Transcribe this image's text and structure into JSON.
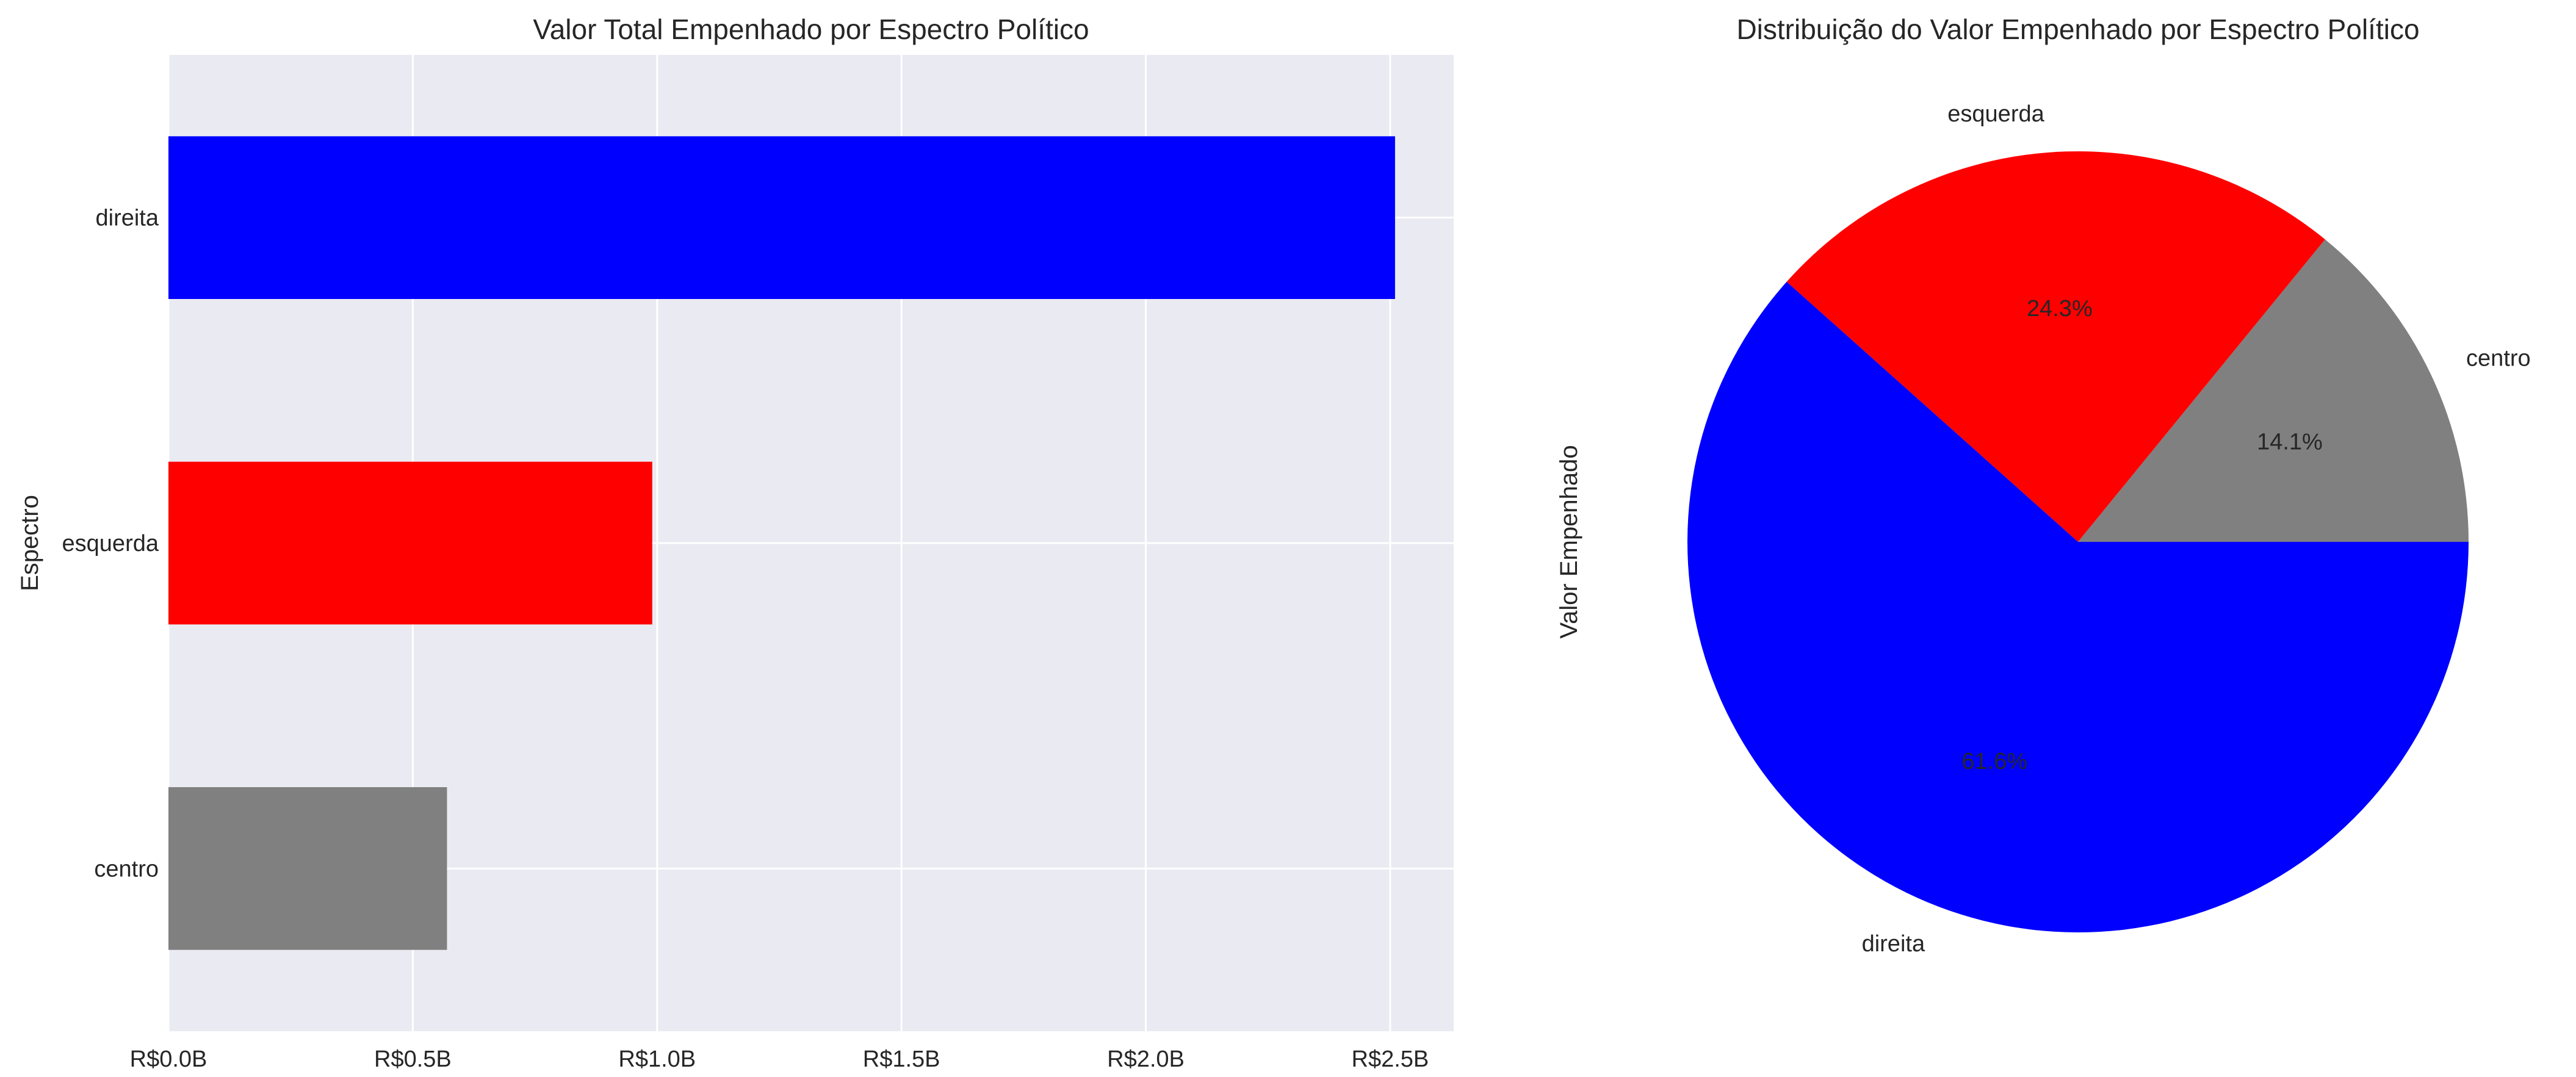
{
  "chart_data": [
    {
      "type": "bar",
      "orientation": "horizontal",
      "title": "Valor Total Empenhado por Espectro Político",
      "xlabel": "",
      "ylabel": "Espectro",
      "categories": [
        "direita",
        "esquerda",
        "centro"
      ],
      "values": [
        2.51,
        0.99,
        0.57
      ],
      "value_unit": "R$ billions",
      "colors": [
        "#0000ff",
        "#ff0000",
        "#808080"
      ],
      "xlim": [
        0,
        2.63
      ],
      "x_ticks": [
        0,
        0.5,
        1.0,
        1.5,
        2.0,
        2.5
      ],
      "x_tick_labels": [
        "R$0.0B",
        "R$0.5B",
        "R$1.0B",
        "R$1.5B",
        "R$2.0B",
        "R$2.5B"
      ],
      "grid": true,
      "background": "#eaeaf2"
    },
    {
      "type": "pie",
      "title": "Distribuição do Valor Empenhado por Espectro Político",
      "ylabel": "Valor Empenhado",
      "slices": [
        {
          "label": "centro",
          "percent": 14.1,
          "pct_label": "14.1%",
          "color": "#808080"
        },
        {
          "label": "esquerda",
          "percent": 24.3,
          "pct_label": "24.3%",
          "color": "#ff0000"
        },
        {
          "label": "direita",
          "percent": 61.6,
          "pct_label": "61.6%",
          "color": "#0000ff"
        }
      ],
      "start_angle_deg": 0,
      "direction": "counterclockwise"
    }
  ]
}
